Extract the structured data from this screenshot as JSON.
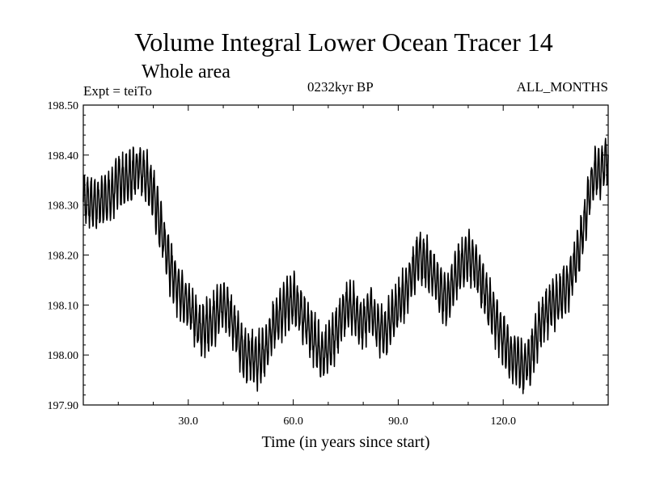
{
  "chart_data": {
    "type": "line",
    "title": "Volume Integral Lower Ocean Tracer 14",
    "subtitle": "Whole area",
    "experiment_label": "Expt = teiTo",
    "period_label": "0232kyr BP",
    "months_label": "ALL_MONTHS",
    "xlabel": "Time (in years since start)",
    "ylabel": "",
    "xlim": [
      0,
      150
    ],
    "ylim": [
      197.9,
      198.5
    ],
    "x_ticks": [
      30,
      60,
      90,
      120
    ],
    "x_tick_labels": [
      "30.0",
      "60.0",
      "90.0",
      "120.0"
    ],
    "y_ticks": [
      197.9,
      198.0,
      198.1,
      198.2,
      198.3,
      198.4,
      198.5
    ],
    "y_tick_labels": [
      "197.90",
      "198.00",
      "198.10",
      "198.20",
      "198.30",
      "198.40",
      "198.50"
    ],
    "series_color": "#000000",
    "series": [
      {
        "name": "Lower Ocean Tracer 14",
        "sampling": "monthly, seasonal oscillation superimposed on mean trend",
        "mean_trend": {
          "x": [
            0,
            2,
            4,
            6,
            8,
            10,
            12,
            14,
            16,
            18,
            20,
            22,
            24,
            26,
            28,
            30,
            32,
            34,
            36,
            38,
            40,
            42,
            44,
            46,
            48,
            50,
            52,
            54,
            56,
            58,
            60,
            62,
            64,
            66,
            68,
            70,
            72,
            74,
            76,
            78,
            80,
            82,
            84,
            86,
            88,
            90,
            92,
            94,
            96,
            98,
            100,
            102,
            104,
            106,
            108,
            110,
            112,
            114,
            116,
            118,
            120,
            122,
            124,
            126,
            128,
            130,
            132,
            134,
            136,
            138,
            140,
            142,
            144,
            146,
            148,
            150
          ],
          "y": [
            198.31,
            198.31,
            198.3,
            198.31,
            198.32,
            198.35,
            198.35,
            198.36,
            198.38,
            198.35,
            198.33,
            198.26,
            198.2,
            198.15,
            198.12,
            198.1,
            198.07,
            198.05,
            198.06,
            198.08,
            198.1,
            198.08,
            198.04,
            198.0,
            198.0,
            197.99,
            198.01,
            198.05,
            198.08,
            198.1,
            198.11,
            198.09,
            198.06,
            198.03,
            198.0,
            198.01,
            198.04,
            198.08,
            198.1,
            198.08,
            198.06,
            198.09,
            198.06,
            198.04,
            198.07,
            198.1,
            198.12,
            198.17,
            198.2,
            198.18,
            198.16,
            198.13,
            198.11,
            198.15,
            198.18,
            198.2,
            198.18,
            198.14,
            198.1,
            198.07,
            198.03,
            198.0,
            197.99,
            197.97,
            198.0,
            198.05,
            198.08,
            198.1,
            198.11,
            198.13,
            198.17,
            198.22,
            198.3,
            198.36,
            198.37,
            198.4
          ]
        },
        "seasonal_amplitude": 0.045,
        "period_years": 1
      }
    ]
  }
}
